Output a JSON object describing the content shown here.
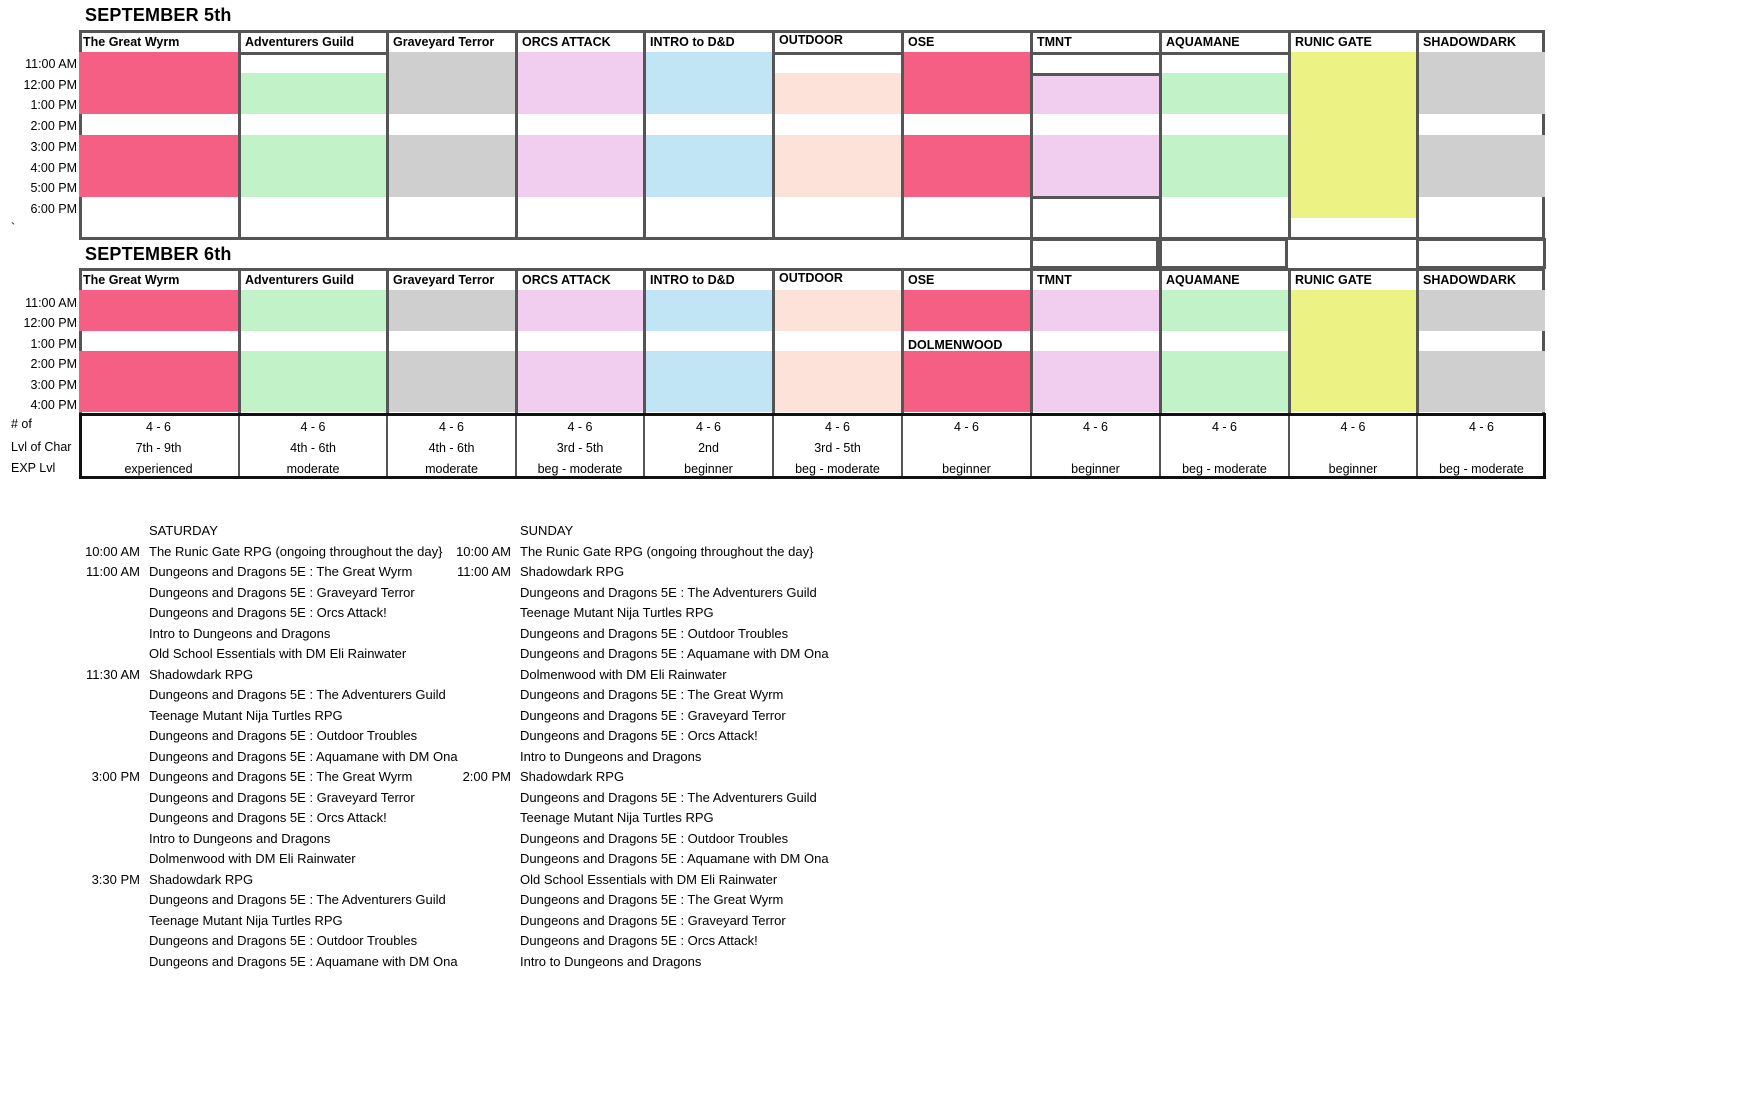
{
  "days": [
    {
      "title": "SEPTEMBER 5th",
      "times": [
        "11:00 AM",
        "12:00 PM",
        "1:00 PM",
        "2:00 PM",
        "3:00 PM",
        "4:00 PM",
        "5:00 PM",
        "6:00 PM"
      ],
      "stray_mark": "`"
    },
    {
      "title": "SEPTEMBER 6th",
      "times": [
        "11:00 AM",
        "12:00 PM",
        "1:00 PM",
        "2:00 PM",
        "3:00 PM",
        "4:00 PM"
      ],
      "extra_label": "DOLMENWOOD"
    }
  ],
  "columns": [
    {
      "name": "The Great Wyrm",
      "color": "#f45f83",
      "players": "4 - 6",
      "level": "7th - 9th",
      "exp": "experienced"
    },
    {
      "name": "Adventurers Guild",
      "color": "#c1f2c8",
      "players": "4 - 6",
      "level": "4th - 6th",
      "exp": "moderate"
    },
    {
      "name": "Graveyard Terror",
      "color": "#cfcfcf",
      "players": "4 - 6",
      "level": "4th - 6th",
      "exp": "moderate"
    },
    {
      "name": "ORCS ATTACK",
      "color": "#f1cdef",
      "players": "4 - 6",
      "level": "3rd - 5th",
      "exp": "beg - moderate"
    },
    {
      "name": "INTRO to D&D",
      "color": "#c2e5f5",
      "players": "4 - 6",
      "level": "2nd",
      "exp": "beginner"
    },
    {
      "name": "OUTDOOR",
      "color": "#fce2d9",
      "players": "4 - 6",
      "level": "3rd - 5th",
      "exp": "beg - moderate"
    },
    {
      "name": "OSE",
      "color": "#f45f83",
      "players": "4 - 6",
      "level": "",
      "exp": "beginner"
    },
    {
      "name": "TMNT",
      "color": "#f1cdef",
      "players": "4 - 6",
      "level": "",
      "exp": "beginner"
    },
    {
      "name": "AQUAMANE",
      "color": "#c1f2c8",
      "players": "4 - 6",
      "level": "",
      "exp": "beg - moderate"
    },
    {
      "name": "RUNIC GATE",
      "color": "#ecf384",
      "players": "4 - 6",
      "level": "",
      "exp": "beginner"
    },
    {
      "name": "SHADOWDARK",
      "color": "#cfcfcf",
      "players": "4 - 6",
      "level": "",
      "exp": "beg - moderate"
    }
  ],
  "info_labels": {
    "players": "# of",
    "level": "Lvl of Char",
    "exp": "EXP Lvl"
  },
  "schedule": {
    "saturday": {
      "label": "SATURDAY",
      "entries": [
        {
          "time": "10:00 AM",
          "desc": "The Runic Gate RPG (ongoing throughout the day}"
        },
        {
          "time": "11:00 AM",
          "desc": "Dungeons and Dragons 5E : The Great Wyrm"
        },
        {
          "time": "",
          "desc": "Dungeons and Dragons 5E : Graveyard Terror"
        },
        {
          "time": "",
          "desc": "Dungeons and Dragons 5E : Orcs Attack!"
        },
        {
          "time": "",
          "desc": "Intro to Dungeons and Dragons"
        },
        {
          "time": "",
          "desc": "Old School Essentials with DM Eli Rainwater"
        },
        {
          "time": "11:30 AM",
          "desc": "Shadowdark RPG"
        },
        {
          "time": "",
          "desc": "Dungeons and Dragons 5E : The Adventurers Guild"
        },
        {
          "time": "",
          "desc": "Teenage Mutant Nija Turtles RPG"
        },
        {
          "time": "",
          "desc": "Dungeons and Dragons 5E : Outdoor Troubles"
        },
        {
          "time": "",
          "desc": "Dungeons and Dragons 5E : Aquamane with DM Ona"
        },
        {
          "time": "3:00 PM",
          "desc": "Dungeons and Dragons 5E : The Great Wyrm"
        },
        {
          "time": "",
          "desc": "Dungeons and Dragons 5E : Graveyard Terror"
        },
        {
          "time": "",
          "desc": "Dungeons and Dragons 5E : Orcs Attack!"
        },
        {
          "time": "",
          "desc": "Intro to Dungeons and Dragons"
        },
        {
          "time": "",
          "desc": "Dolmenwood with DM Eli Rainwater"
        },
        {
          "time": "3:30 PM",
          "desc": "Shadowdark RPG"
        },
        {
          "time": "",
          "desc": "Dungeons and Dragons 5E : The Adventurers Guild"
        },
        {
          "time": "",
          "desc": "Teenage Mutant Nija Turtles RPG"
        },
        {
          "time": "",
          "desc": "Dungeons and Dragons 5E : Outdoor Troubles"
        },
        {
          "time": "",
          "desc": "Dungeons and Dragons 5E : Aquamane with DM Ona"
        }
      ]
    },
    "sunday": {
      "label": "SUNDAY",
      "entries": [
        {
          "time": "10:00 AM",
          "desc": "The Runic Gate RPG (ongoing throughout the day}"
        },
        {
          "time": "11:00 AM",
          "desc": "Shadowdark RPG"
        },
        {
          "time": "",
          "desc": "Dungeons and Dragons 5E : The Adventurers Guild"
        },
        {
          "time": "",
          "desc": "Teenage Mutant Nija Turtles RPG"
        },
        {
          "time": "",
          "desc": "Dungeons and Dragons 5E : Outdoor Troubles"
        },
        {
          "time": "",
          "desc": "Dungeons and Dragons 5E : Aquamane with DM Ona"
        },
        {
          "time": "",
          "desc": "Dolmenwood with DM Eli Rainwater"
        },
        {
          "time": "",
          "desc": "Dungeons and Dragons 5E : The Great Wyrm"
        },
        {
          "time": "",
          "desc": "Dungeons and Dragons 5E : Graveyard Terror"
        },
        {
          "time": "",
          "desc": "Dungeons and Dragons 5E : Orcs Attack!"
        },
        {
          "time": "",
          "desc": "Intro to Dungeons and Dragons"
        },
        {
          "time": "2:00 PM",
          "desc": "Shadowdark RPG"
        },
        {
          "time": "",
          "desc": "Dungeons and Dragons 5E : The Adventurers Guild"
        },
        {
          "time": "",
          "desc": "Teenage Mutant Nija Turtles RPG"
        },
        {
          "time": "",
          "desc": "Dungeons and Dragons 5E : Outdoor Troubles"
        },
        {
          "time": "",
          "desc": "Dungeons and Dragons 5E : Aquamane with DM Ona"
        },
        {
          "time": "",
          "desc": "Old School Essentials with DM Eli Rainwater"
        },
        {
          "time": "",
          "desc": "Dungeons and Dragons 5E : The Great Wyrm"
        },
        {
          "time": "",
          "desc": "Dungeons and Dragons 5E : Graveyard Terror"
        },
        {
          "time": "",
          "desc": "Dungeons and Dragons 5E : Orcs Attack!"
        },
        {
          "time": "",
          "desc": "Intro to Dungeons and Dragons"
        }
      ]
    }
  }
}
